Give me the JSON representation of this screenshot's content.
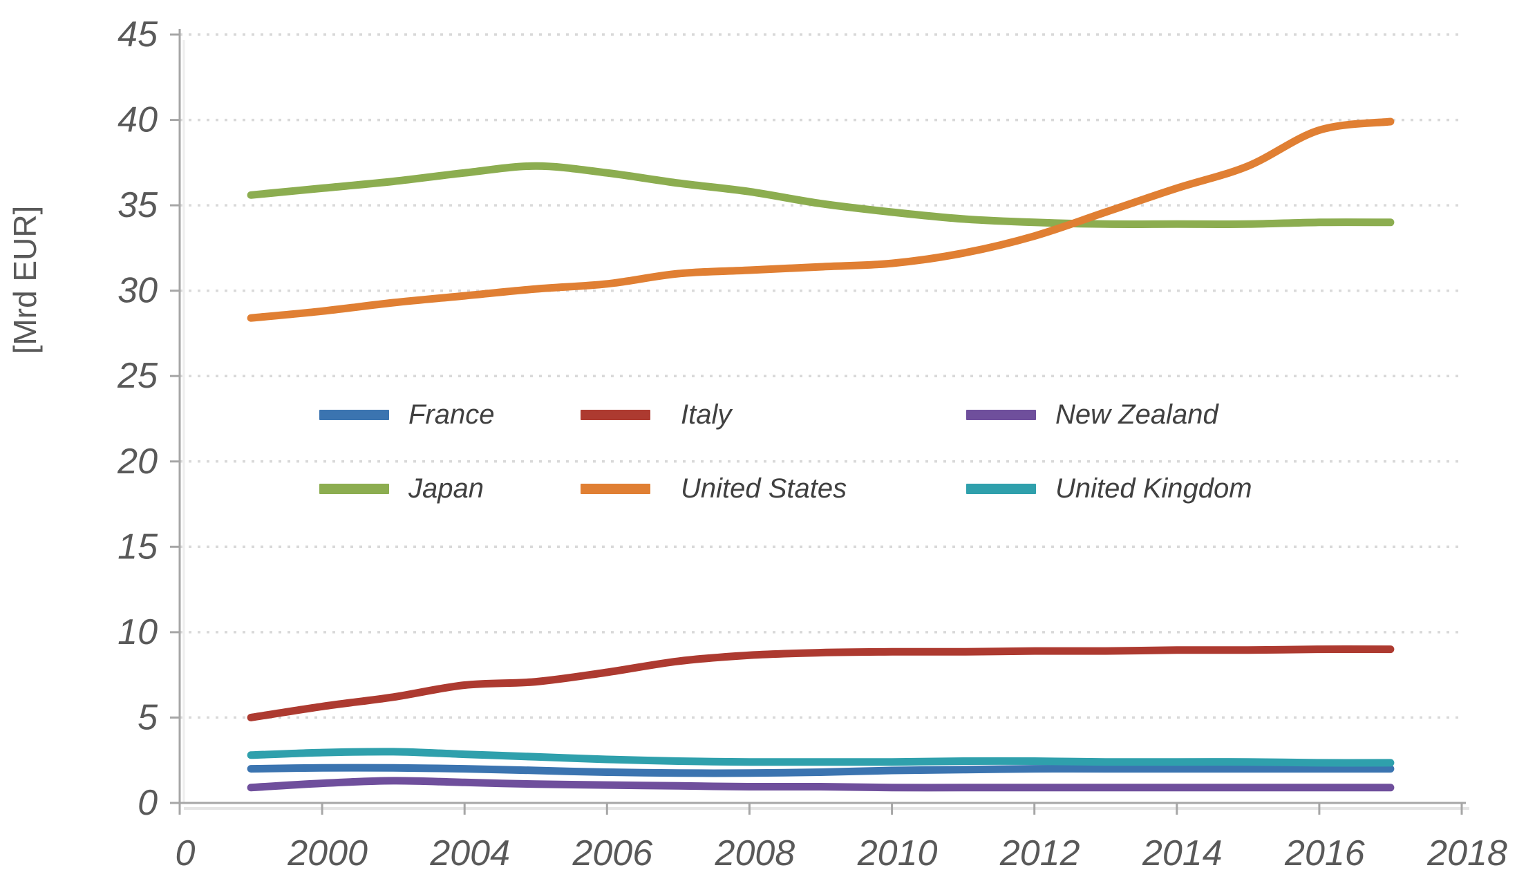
{
  "page": {
    "background": "#FFFFFF"
  },
  "chart_data": {
    "type": "line",
    "title": "",
    "xlabel": "",
    "ylabel": "[Mrd EUR]",
    "ylim": [
      0,
      45
    ],
    "y_tick_step": 5,
    "y_tick_labels": [
      "0",
      "5",
      "10",
      "15",
      "20",
      "25",
      "30",
      "35",
      "40",
      "45"
    ],
    "x_tick_labels": [
      "0",
      "2000",
      "2004",
      "2006",
      "2008",
      "2010",
      "2012",
      "2014",
      "2016",
      "2018"
    ],
    "x_slot_count": 19,
    "x_tick_slot_indices": [
      0,
      2,
      4,
      6,
      8,
      10,
      12,
      14,
      16,
      18
    ],
    "data_slot_start": 1,
    "grid": "horizontal dotted gridlines on",
    "legend_position": "inside plot, center-left, 2 rows x 3 columns",
    "line_style": "smoothed, no markers",
    "axis_color": "#A6A6A6",
    "grid_color": "#D9D9D9",
    "tick_label_color": "#595959",
    "legend_text_color": "#404040",
    "series": [
      {
        "name": "France",
        "color": "#3B74B0",
        "values": [
          2.0,
          2.05,
          2.05,
          2.0,
          1.9,
          1.8,
          1.75,
          1.75,
          1.8,
          1.9,
          1.95,
          2.0,
          2.0,
          2.0,
          2.0,
          2.0,
          2.0
        ]
      },
      {
        "name": "Italy",
        "color": "#AD3A30",
        "values": [
          5.0,
          5.65,
          6.2,
          6.9,
          7.1,
          7.65,
          8.3,
          8.65,
          8.8,
          8.85,
          8.85,
          8.9,
          8.9,
          8.95,
          8.95,
          9.0,
          9.0
        ]
      },
      {
        "name": "New Zealand",
        "color": "#6F4F9C",
        "values": [
          0.9,
          1.15,
          1.3,
          1.2,
          1.1,
          1.05,
          1.0,
          0.95,
          0.95,
          0.9,
          0.9,
          0.9,
          0.9,
          0.9,
          0.9,
          0.9,
          0.9
        ]
      },
      {
        "name": "Japan",
        "color": "#8CAD50",
        "values": [
          35.6,
          36.0,
          36.4,
          36.9,
          37.3,
          36.9,
          36.3,
          35.8,
          35.1,
          34.6,
          34.2,
          34.0,
          33.9,
          33.9,
          33.9,
          34.0,
          34.0
        ]
      },
      {
        "name": "United States",
        "color": "#E07F33",
        "values": [
          28.4,
          28.8,
          29.3,
          29.7,
          30.1,
          30.4,
          31.0,
          31.2,
          31.4,
          31.6,
          32.2,
          33.2,
          34.6,
          36.0,
          37.3,
          39.4,
          39.9
        ]
      },
      {
        "name": "United Kingdom",
        "color": "#2FA0AC",
        "values": [
          2.8,
          2.95,
          3.0,
          2.85,
          2.7,
          2.55,
          2.45,
          2.4,
          2.4,
          2.4,
          2.45,
          2.45,
          2.4,
          2.4,
          2.4,
          2.35,
          2.35
        ]
      }
    ]
  }
}
